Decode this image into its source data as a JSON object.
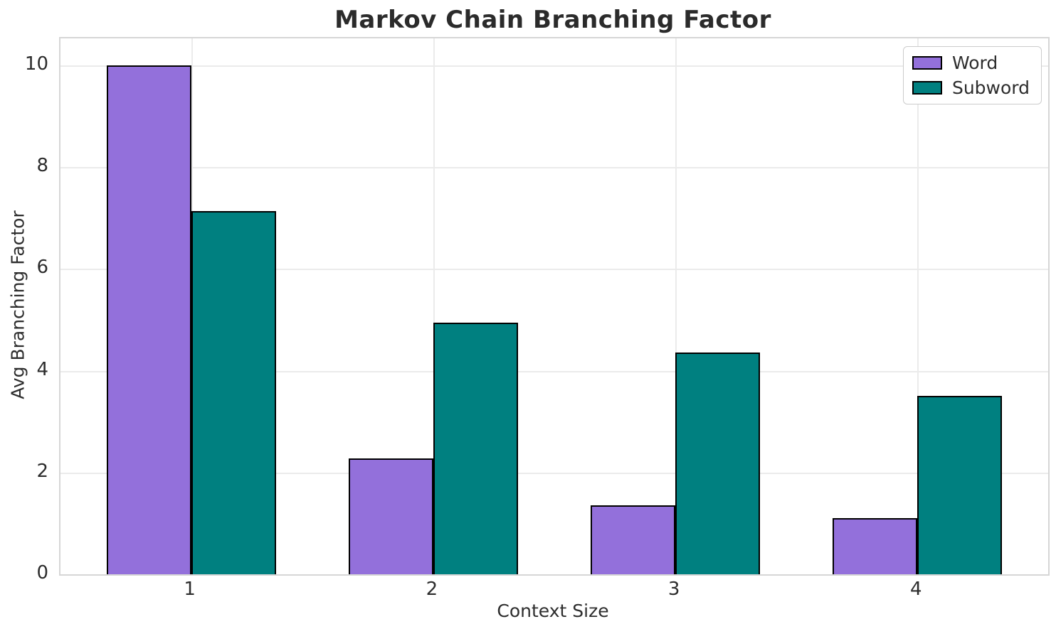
{
  "title": "Markov Chain Branching Factor",
  "chart_data": {
    "type": "bar",
    "title": "Markov Chain Branching Factor",
    "xlabel": "Context Size",
    "ylabel": "Avg Branching Factor",
    "categories": [
      "1",
      "2",
      "3",
      "4"
    ],
    "series": [
      {
        "name": "Word",
        "color": "#9370DB",
        "values": [
          10.0,
          2.28,
          1.35,
          1.1
        ]
      },
      {
        "name": "Subword",
        "color": "#008080",
        "values": [
          7.13,
          4.95,
          4.36,
          3.5
        ]
      }
    ],
    "bar_edge_color": "#000000",
    "bar_width_units": 0.35,
    "xlim": [
      0.46,
      4.54
    ],
    "ylim": [
      0,
      10.53
    ],
    "yticks": [
      0,
      2,
      4,
      6,
      8,
      10
    ],
    "grid": true,
    "legend_position": "upper right",
    "colors": {
      "grid": "#ebebeb",
      "spine": "#d6d6d6",
      "text": "#2d2d2d",
      "title": "#2b2b2b",
      "background": "#ffffff"
    }
  }
}
